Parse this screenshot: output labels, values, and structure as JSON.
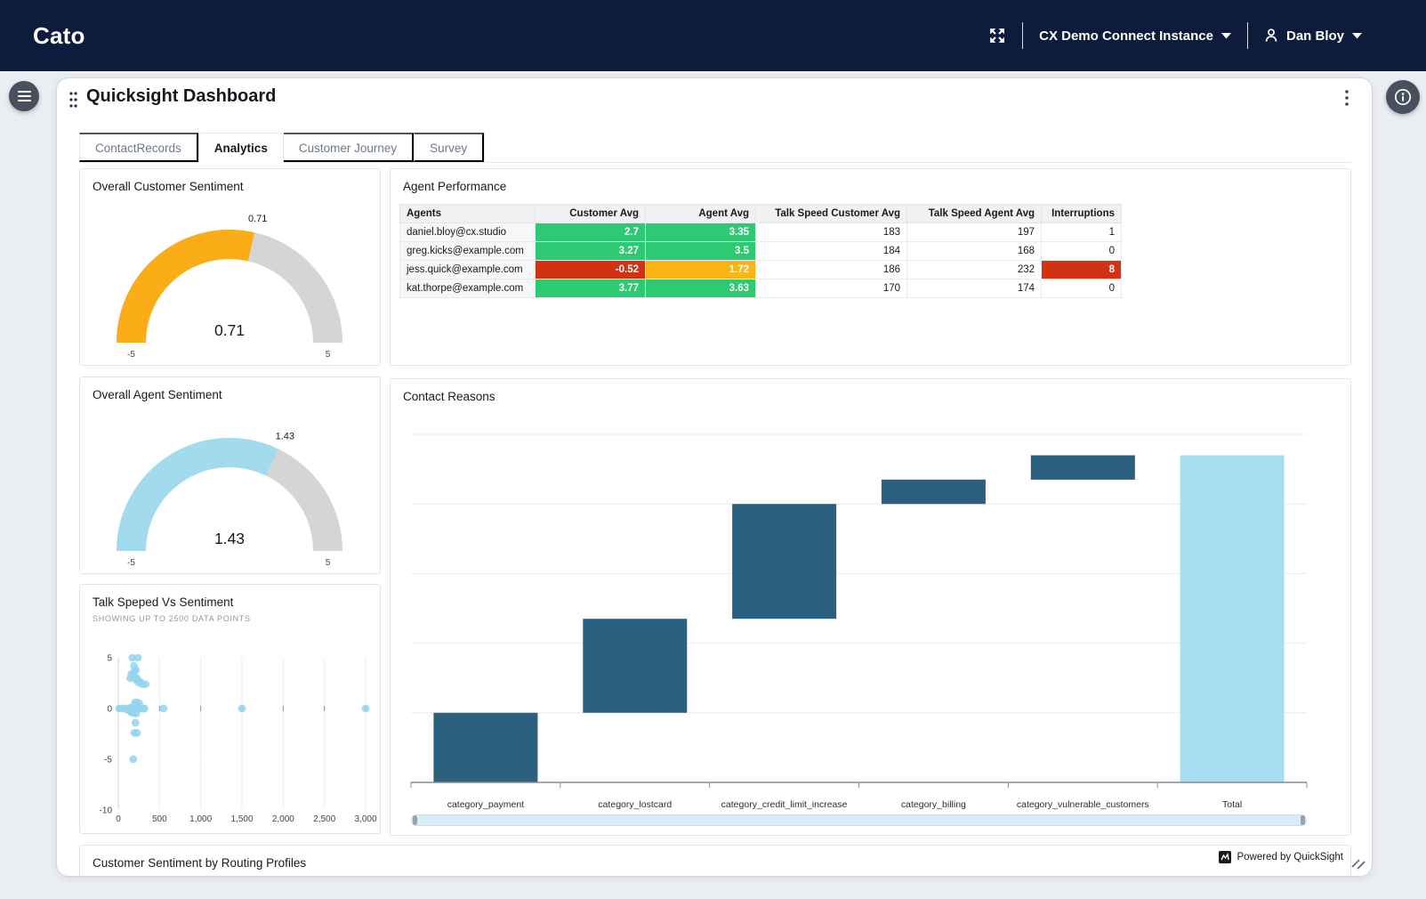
{
  "navbar": {
    "brand": "Cato",
    "instance_label": "CX Demo Connect Instance",
    "user_name": "Dan Bloy"
  },
  "header": {
    "title": "Quicksight Dashboard"
  },
  "tabs": [
    {
      "label": "ContactRecords",
      "active": false
    },
    {
      "label": "Analytics",
      "active": true
    },
    {
      "label": "Customer Journey",
      "active": false
    },
    {
      "label": "Survey",
      "active": false
    }
  ],
  "panels": {
    "customer_gauge_title": "Overall Customer Sentiment",
    "agent_performance_title": "Agent Performance",
    "agent_gauge_title": "Overall Agent Sentiment",
    "contact_reasons_title": "Contact Reasons",
    "scatter_title": "Talk Speped Vs Sentiment",
    "scatter_subtitle": "SHOWING UP TO 2500 DATA POINTS",
    "routing_title": "Customer Sentiment by Routing Profiles"
  },
  "footer": {
    "powered_by": "Powered by QuickSight"
  },
  "colors": {
    "navbar": "#0d1b3c",
    "green": "#2dca73",
    "red": "#d13212",
    "amber": "#fdb515",
    "gauge_orange": "#fbad18",
    "gauge_blue": "#a3dbee",
    "track": "#d5d5d5",
    "waterfall_bar": "#2c607f",
    "waterfall_total": "#a8def2",
    "scatter_dot": "#93d5ed"
  },
  "agent_table": {
    "columns": [
      "Agents",
      "Customer Avg",
      "Agent Avg",
      "Talk Speed Customer Avg",
      "Talk Speed Agent Avg",
      "Interruptions"
    ],
    "rows": [
      {
        "cells": [
          "daniel.bloy@cx.studio",
          "2.7",
          "3.35",
          "183",
          "197",
          "1"
        ],
        "cell_colors": [
          null,
          "green",
          "green",
          null,
          null,
          null
        ]
      },
      {
        "cells": [
          "greg.kicks@example.com",
          "3.27",
          "3.5",
          "184",
          "168",
          "0"
        ],
        "cell_colors": [
          null,
          "green",
          "green",
          null,
          null,
          null
        ]
      },
      {
        "cells": [
          "jess.quick@example.com",
          "-0.52",
          "1.72",
          "186",
          "232",
          "8"
        ],
        "cell_colors": [
          null,
          "red",
          "amber",
          null,
          null,
          "red"
        ]
      },
      {
        "cells": [
          "kat.thorpe@example.com",
          "3.77",
          "3.63",
          "170",
          "174",
          "0"
        ],
        "cell_colors": [
          null,
          "green",
          "green",
          null,
          null,
          null
        ]
      }
    ]
  },
  "chart_data": [
    {
      "type": "gauge",
      "title": "Overall Customer Sentiment",
      "value": 0.71,
      "min": -5,
      "max": 5,
      "min_label": "-5",
      "max_label": "5",
      "value_label": "0.71",
      "color_key": "gauge_orange"
    },
    {
      "type": "gauge",
      "title": "Overall Agent Sentiment",
      "value": 1.43,
      "min": -5,
      "max": 5,
      "min_label": "-5",
      "max_label": "5",
      "value_label": "1.43",
      "color_key": "gauge_blue"
    },
    {
      "type": "scatter",
      "title": "Talk Speped Vs Sentiment",
      "subtitle": "SHOWING UP TO 2500 DATA POINTS",
      "xlabel": "",
      "ylabel": "",
      "xlim": [
        0,
        3000
      ],
      "ylim": [
        -10,
        5
      ],
      "xticks": [
        0,
        500,
        1000,
        1500,
        2000,
        2500,
        3000
      ],
      "xtick_labels": [
        "0",
        "500",
        "1,000",
        "1,500",
        "2,000",
        "2,500",
        "3,000"
      ],
      "yticks": [
        5,
        0,
        -5,
        -10
      ],
      "ytick_labels": [
        "5",
        "0",
        "-5",
        "-10"
      ],
      "grid": true,
      "points": [
        [
          10,
          0
        ],
        [
          55,
          0
        ],
        [
          90,
          0
        ],
        [
          110,
          -0.1
        ],
        [
          130,
          -0.2
        ],
        [
          145,
          3
        ],
        [
          150,
          0.1
        ],
        [
          160,
          3.4
        ],
        [
          163,
          -0.4
        ],
        [
          170,
          5
        ],
        [
          172,
          0
        ],
        [
          177,
          3.2
        ],
        [
          180,
          -5
        ],
        [
          183,
          3.5
        ],
        [
          186,
          -0.4
        ],
        [
          190,
          4.2
        ],
        [
          192,
          0.1
        ],
        [
          195,
          -2.4
        ],
        [
          200,
          3.7
        ],
        [
          201,
          0.6
        ],
        [
          205,
          2.9
        ],
        [
          208,
          -1.4
        ],
        [
          212,
          0
        ],
        [
          215,
          3.8
        ],
        [
          217,
          -0.5
        ],
        [
          224,
          3
        ],
        [
          226,
          -2.4
        ],
        [
          230,
          0.6
        ],
        [
          237,
          5
        ],
        [
          241,
          2.6
        ],
        [
          246,
          0
        ],
        [
          255,
          0.5
        ],
        [
          262,
          0
        ],
        [
          270,
          2.6
        ],
        [
          288,
          2.4
        ],
        [
          296,
          0
        ],
        [
          318,
          0
        ],
        [
          330,
          2.4
        ],
        [
          550,
          0
        ],
        [
          1500,
          0
        ],
        [
          3000,
          0
        ]
      ]
    },
    {
      "type": "waterfall",
      "title": "Contact Reasons",
      "categories": [
        "category_payment",
        "category_lostcard",
        "category_credit_limit_increase",
        "category_billing",
        "category_vulnerable_customers"
      ],
      "total_label": "Total",
      "values": [
        20,
        27,
        33,
        7,
        7
      ],
      "total": 94,
      "ylim": [
        0,
        100
      ],
      "gridline_step": 20,
      "note": "y-axis unlabeled; values estimated from gridlines"
    }
  ]
}
